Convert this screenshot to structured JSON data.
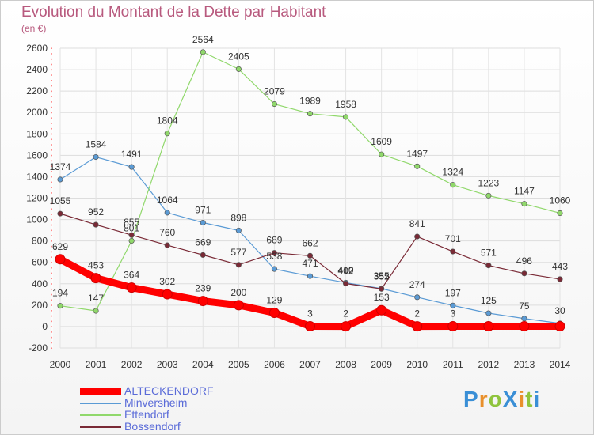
{
  "title": "Evolution du Montant de la Dette par Habitant",
  "subtitle": "(en €)",
  "brand": {
    "text": "ProXiti",
    "letter_colors": [
      "#3a8fd6",
      "#e9902b",
      "#8fc43d",
      "#3a8fd6",
      "#e9902b",
      "#8fc43d",
      "#3a8fd6"
    ]
  },
  "chart_data": {
    "type": "line",
    "x": [
      "2000",
      "2001",
      "2002",
      "2003",
      "2004",
      "2005",
      "2006",
      "2007",
      "2008",
      "2009",
      "2010",
      "2011",
      "2012",
      "2013",
      "2014"
    ],
    "ylim": [
      -200,
      2600
    ],
    "yticks": [
      -200,
      0,
      200,
      400,
      600,
      800,
      1000,
      1200,
      1400,
      1600,
      1800,
      2000,
      2200,
      2400,
      2600
    ],
    "grid": true,
    "legend_position": "bottom-left",
    "series": [
      {
        "name": "ALTECKENDORF",
        "color": "#ff0000",
        "values": [
          629,
          453,
          364,
          302,
          239,
          200,
          129,
          3,
          2,
          153,
          2,
          3,
          3,
          3,
          3
        ],
        "labels": [
          "629",
          "453",
          "364",
          "302",
          "239",
          "200",
          "129",
          "3",
          "2",
          "153",
          "2",
          "3",
          "",
          "",
          ""
        ]
      },
      {
        "name": "Minversheim",
        "color": "#5b9bd5",
        "values": [
          1374,
          1584,
          1491,
          1064,
          971,
          898,
          538,
          471,
          410,
          355,
          274,
          197,
          125,
          75,
          30
        ],
        "labels": [
          "1374",
          "1584",
          "1491",
          "1064",
          "971",
          "898",
          "538",
          "471",
          "410",
          "355",
          "274",
          "197",
          "125",
          "75",
          "30"
        ]
      },
      {
        "name": "Ettendorf",
        "color": "#90d86b",
        "values": [
          194,
          147,
          801,
          1804,
          2564,
          2405,
          2079,
          1989,
          1958,
          1609,
          1497,
          1324,
          1223,
          1147,
          1060
        ],
        "labels": [
          "194",
          "147",
          "801",
          "1804",
          "2564",
          "2405",
          "2079",
          "1989",
          "1958",
          "1609",
          "1497",
          "1324",
          "1223",
          "1147",
          "1060"
        ]
      },
      {
        "name": "Bossendorf",
        "color": "#7a2a36",
        "values": [
          1055,
          952,
          855,
          760,
          669,
          577,
          689,
          662,
          402,
          352,
          841,
          701,
          571,
          496,
          443
        ],
        "labels": [
          "1055",
          "952",
          "855",
          "760",
          "669",
          "577",
          "689",
          "662",
          "402",
          "352",
          "841",
          "701",
          "571",
          "496",
          "443"
        ]
      }
    ]
  }
}
